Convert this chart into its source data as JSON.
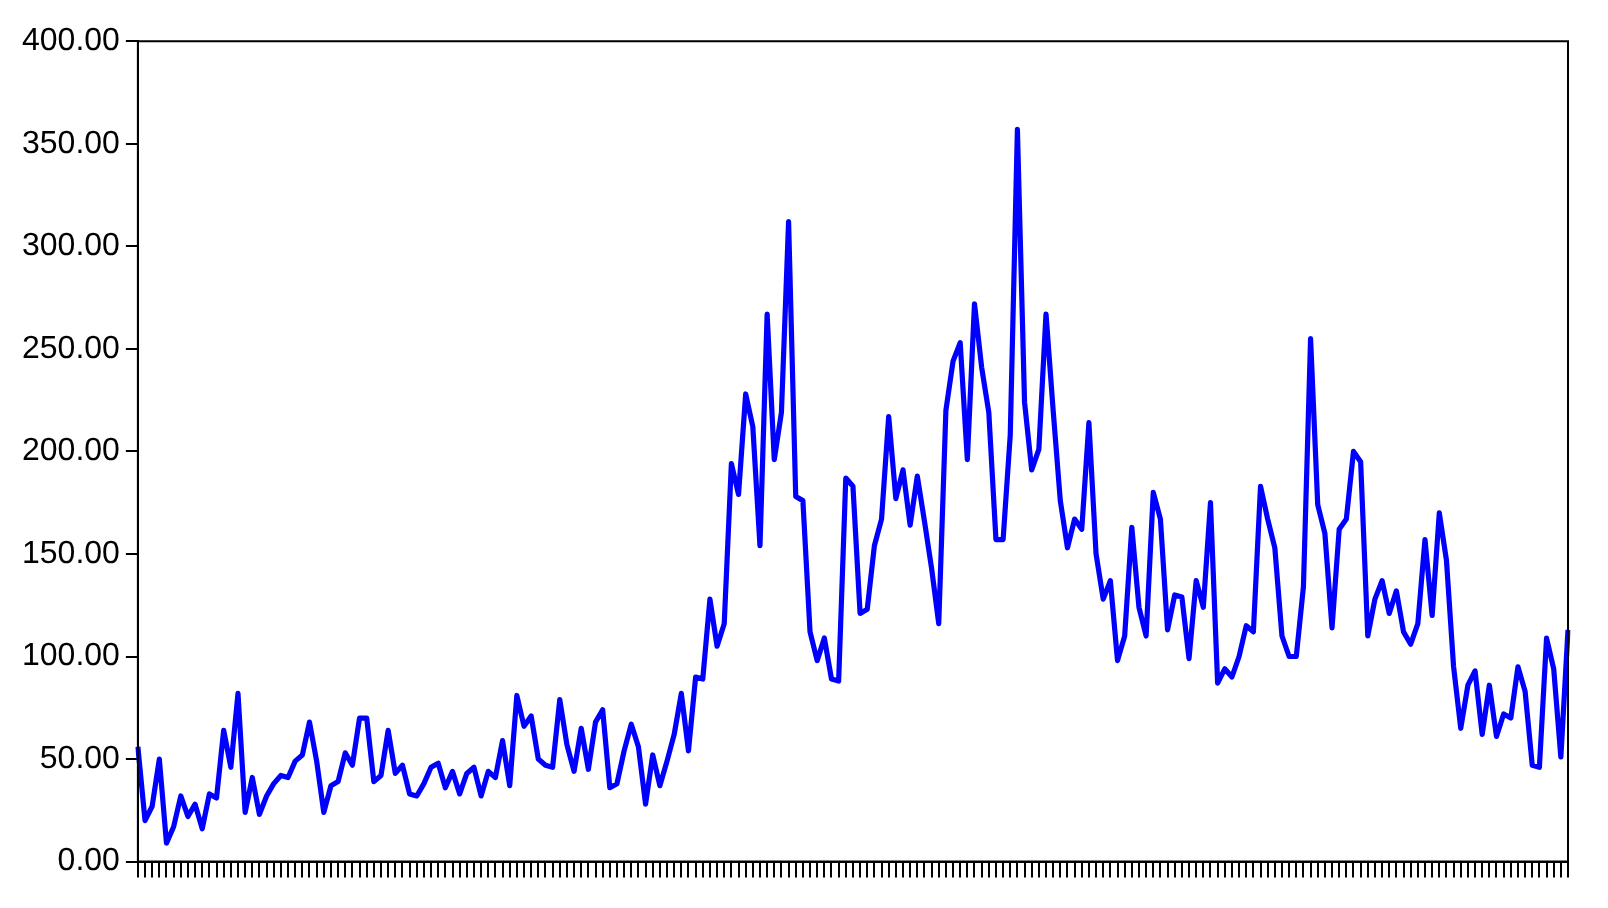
{
  "chart_data": {
    "type": "line",
    "categories": [
      null,
      null,
      null,
      null,
      null,
      null,
      null,
      null,
      null,
      null,
      null,
      null,
      null,
      null,
      null,
      null,
      null,
      null,
      null,
      null,
      null,
      null,
      null,
      null,
      null,
      null,
      null,
      null,
      null,
      null,
      null,
      null,
      null,
      null,
      null,
      null,
      null,
      null,
      null,
      null,
      null,
      null,
      null,
      null,
      null,
      null,
      null,
      null,
      null,
      null,
      null,
      null,
      null,
      null,
      null,
      null,
      null,
      null,
      null,
      null,
      null,
      null,
      null,
      null,
      null,
      null,
      null,
      null,
      null,
      null,
      null,
      null,
      null,
      null,
      null,
      null,
      null,
      null,
      null,
      null,
      null,
      null,
      null,
      null,
      null,
      null,
      null,
      null,
      null,
      null,
      null,
      null,
      null,
      null,
      null,
      null,
      null,
      null,
      null,
      null,
      null,
      null,
      null,
      null,
      null,
      null,
      null,
      null,
      null,
      null,
      null,
      null,
      null,
      null,
      null,
      null,
      null,
      null,
      null,
      null,
      null,
      null,
      null,
      null,
      null,
      null,
      null,
      null,
      null,
      null,
      null,
      null,
      null,
      null,
      null,
      null,
      null,
      null,
      null,
      null,
      null,
      null,
      null,
      null,
      null,
      null,
      null,
      null,
      null,
      null,
      null,
      null,
      null,
      null,
      null,
      null,
      null,
      null,
      null,
      null,
      null,
      null,
      null,
      null,
      null,
      null,
      null,
      null,
      null,
      null,
      null,
      null,
      null,
      null,
      null,
      null,
      null,
      null,
      null,
      null,
      null,
      null,
      null,
      null,
      null,
      null,
      null,
      null,
      null,
      null,
      null,
      null,
      null,
      null,
      null,
      null,
      null,
      null,
      null,
      null,
      null
    ],
    "series": [
      {
        "color": "#0000ff",
        "values": [
          56,
          20,
          27,
          50,
          9,
          17,
          32,
          22,
          28,
          16,
          33,
          31,
          64,
          46,
          82,
          24,
          41,
          23,
          32,
          38,
          42,
          41,
          49,
          52,
          68,
          49,
          24,
          37,
          39,
          53,
          47,
          70,
          70,
          39,
          42,
          64,
          43,
          47,
          33,
          32,
          38,
          46,
          48,
          36,
          44,
          33,
          43,
          46,
          32,
          44,
          41,
          59,
          37,
          81,
          66,
          71,
          50,
          47,
          46,
          79,
          57,
          44,
          65,
          45,
          68,
          74,
          36,
          38,
          54,
          67,
          56,
          28,
          52,
          37,
          49,
          62,
          82,
          54,
          90,
          89,
          128,
          105,
          116,
          194,
          179,
          228,
          212,
          154,
          267,
          196,
          219,
          312,
          178,
          176,
          112,
          98,
          109,
          89,
          88,
          187,
          183,
          121,
          123,
          154,
          167,
          217,
          177,
          191,
          164,
          188,
          166,
          143,
          116,
          220,
          244,
          253,
          196,
          272,
          241,
          219,
          157,
          157,
          208,
          357,
          224,
          191,
          201,
          267,
          220,
          176,
          153,
          167,
          162,
          214,
          150,
          128,
          137,
          98,
          110,
          163,
          124,
          110,
          180,
          167,
          113,
          130,
          129,
          99,
          137,
          124,
          175,
          87,
          94,
          90,
          100,
          115,
          112,
          183,
          167,
          153,
          110,
          100,
          100,
          134,
          255,
          174,
          160,
          114,
          162,
          167,
          200,
          195,
          110,
          128,
          137,
          121,
          132,
          112,
          106,
          116,
          157,
          120,
          170,
          147,
          95,
          65,
          86,
          93,
          62,
          86,
          61,
          72,
          70,
          95,
          83,
          47,
          46,
          109,
          94,
          51,
          113
        ]
      }
    ],
    "ylim": [
      0,
      400
    ],
    "yticks": [
      {
        "value": 0,
        "label": "0.00"
      },
      {
        "value": 50,
        "label": "50.00"
      },
      {
        "value": 100,
        "label": "100.00"
      },
      {
        "value": 150,
        "label": "150.00"
      },
      {
        "value": 200,
        "label": "200.00"
      },
      {
        "value": 250,
        "label": "250.00"
      },
      {
        "value": 300,
        "label": "300.00"
      },
      {
        "value": 350,
        "label": "350.00"
      },
      {
        "value": 400,
        "label": "400.00"
      }
    ],
    "grid": false,
    "legend": false,
    "marker": "none",
    "line_style": "solid"
  }
}
